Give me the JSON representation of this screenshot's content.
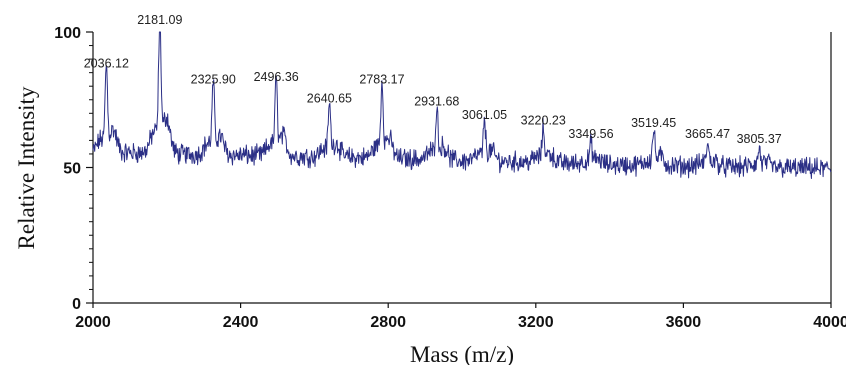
{
  "chart_data": {
    "type": "line",
    "xlabel": "Mass (m/z)",
    "ylabel": "Relative Intensity",
    "xlim": [
      2000,
      4000
    ],
    "ylim": [
      0,
      100
    ],
    "x_ticks": [
      "2000",
      "2400",
      "2800",
      "3200",
      "3600",
      "4000"
    ],
    "y_ticks": [
      "0",
      "50",
      "100"
    ],
    "grid": false,
    "line_color": "#2b2f86",
    "baseline": [
      [
        2000,
        55
      ],
      [
        2100,
        55.5
      ],
      [
        2200,
        55
      ],
      [
        2400,
        54.5
      ],
      [
        2600,
        54
      ],
      [
        2800,
        53.5
      ],
      [
        3000,
        52.5
      ],
      [
        3200,
        52
      ],
      [
        3400,
        51
      ],
      [
        3600,
        50.5
      ],
      [
        3800,
        50
      ],
      [
        4000,
        49.5
      ]
    ],
    "peaks": [
      {
        "x": 2036.12,
        "y": 84,
        "label": "2036.12"
      },
      {
        "x": 2181.09,
        "y": 100,
        "label": "2181.09"
      },
      {
        "x": 2325.9,
        "y": 78,
        "label": "2325.90"
      },
      {
        "x": 2496.36,
        "y": 79,
        "label": "2496.36"
      },
      {
        "x": 2640.65,
        "y": 71,
        "label": "2640.65"
      },
      {
        "x": 2783.17,
        "y": 78,
        "label": "2783.17"
      },
      {
        "x": 2931.68,
        "y": 70,
        "label": "2931.68"
      },
      {
        "x": 3061.05,
        "y": 65,
        "label": "3061.05"
      },
      {
        "x": 3220.23,
        "y": 63,
        "label": "3220.23"
      },
      {
        "x": 3349.56,
        "y": 58,
        "label": "3349.56"
      },
      {
        "x": 3519.45,
        "y": 62,
        "label": "3519.45"
      },
      {
        "x": 3665.47,
        "y": 58,
        "label": "3665.47"
      },
      {
        "x": 3805.37,
        "y": 56,
        "label": "3805.37"
      }
    ]
  }
}
